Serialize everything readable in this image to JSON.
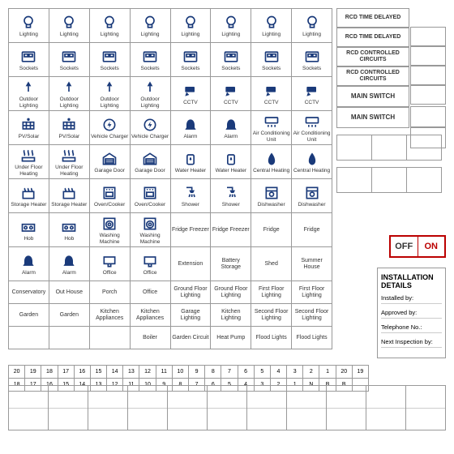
{
  "colors": {
    "icon": "#1a3a7a",
    "border": "#999",
    "text": "#333",
    "accent": "#b00"
  },
  "grid": {
    "cols": 8,
    "rows": [
      [
        {
          "i": "bulb",
          "l": "Lighting"
        },
        {
          "i": "bulb",
          "l": "Lighting"
        },
        {
          "i": "bulb",
          "l": "Lighting"
        },
        {
          "i": "bulb",
          "l": "Lighting"
        },
        {
          "i": "bulb",
          "l": "Lighting"
        },
        {
          "i": "bulb",
          "l": "Lighting"
        },
        {
          "i": "bulb",
          "l": "Lighting"
        },
        {
          "i": "bulb",
          "l": "Lighting"
        }
      ],
      [
        {
          "i": "socket",
          "l": "Sockets"
        },
        {
          "i": "socket",
          "l": "Sockets"
        },
        {
          "i": "socket",
          "l": "Sockets"
        },
        {
          "i": "socket",
          "l": "Sockets"
        },
        {
          "i": "socket",
          "l": "Sockets"
        },
        {
          "i": "socket",
          "l": "Sockets"
        },
        {
          "i": "socket",
          "l": "Sockets"
        },
        {
          "i": "socket",
          "l": "Sockets"
        }
      ],
      [
        {
          "i": "lamp",
          "l": "Outdoor Lighting"
        },
        {
          "i": "lamp",
          "l": "Outdoor Lighting"
        },
        {
          "i": "lamp",
          "l": "Outdoor Lighting"
        },
        {
          "i": "lamp",
          "l": "Outdoor Lighting"
        },
        {
          "i": "cctv",
          "l": "CCTV"
        },
        {
          "i": "cctv",
          "l": "CCTV"
        },
        {
          "i": "cctv",
          "l": "CCTV"
        },
        {
          "i": "cctv",
          "l": "CCTV"
        }
      ],
      [
        {
          "i": "solar",
          "l": "PV/Solar"
        },
        {
          "i": "solar",
          "l": "PV/Solar"
        },
        {
          "i": "ev",
          "l": "Vehicle Charger"
        },
        {
          "i": "ev",
          "l": "Vehicle Charger"
        },
        {
          "i": "alarm",
          "l": "Alarm"
        },
        {
          "i": "alarm",
          "l": "Alarm"
        },
        {
          "i": "ac",
          "l": "Air Conditioning Unit"
        },
        {
          "i": "ac",
          "l": "Air Conditioning Unit"
        }
      ],
      [
        {
          "i": "ufh",
          "l": "Under Floor Heating"
        },
        {
          "i": "ufh",
          "l": "Under Floor Heating"
        },
        {
          "i": "garage",
          "l": "Garage Door"
        },
        {
          "i": "garage",
          "l": "Garage Door"
        },
        {
          "i": "water",
          "l": "Water Heater"
        },
        {
          "i": "water",
          "l": "Water Heater"
        },
        {
          "i": "flame",
          "l": "Central Heating"
        },
        {
          "i": "flame",
          "l": "Central Heating"
        }
      ],
      [
        {
          "i": "storage",
          "l": "Storage Heater"
        },
        {
          "i": "storage",
          "l": "Storage Heater"
        },
        {
          "i": "oven",
          "l": "Oven/Cooker"
        },
        {
          "i": "oven",
          "l": "Oven/Cooker"
        },
        {
          "i": "shower",
          "l": "Shower"
        },
        {
          "i": "shower",
          "l": "Shower"
        },
        {
          "i": "dish",
          "l": "Dishwasher"
        },
        {
          "i": "dish",
          "l": "Dishwasher"
        }
      ],
      [
        {
          "i": "hob",
          "l": "Hob"
        },
        {
          "i": "hob",
          "l": "Hob"
        },
        {
          "i": "wash",
          "l": "Washing Machine"
        },
        {
          "i": "wash",
          "l": "Washing Machine"
        },
        {
          "l": "Fridge Freezer"
        },
        {
          "l": "Fridge Freezer"
        },
        {
          "l": "Fridge"
        },
        {
          "l": "Fridge"
        }
      ],
      [
        {
          "i": "alarm",
          "l": "Alarm"
        },
        {
          "i": "alarm",
          "l": "Alarm"
        },
        {
          "i": "office",
          "l": "Office"
        },
        {
          "i": "office",
          "l": "Office"
        },
        {
          "l": "Extension"
        },
        {
          "l": "Battery Storage"
        },
        {
          "l": "Shed"
        },
        {
          "l": "Summer House"
        }
      ],
      [
        {
          "l": "Conservatory"
        },
        {
          "l": "Out House"
        },
        {
          "l": "Porch"
        },
        {
          "l": "Office"
        },
        {
          "l": "Ground Floor Lighting"
        },
        {
          "l": "Ground Floor Lighting"
        },
        {
          "l": "First Floor Lighting"
        },
        {
          "l": "First Floor Lighting"
        }
      ],
      [
        {
          "l": "Garden"
        },
        {
          "l": "Garden"
        },
        {
          "l": "Kitchen Appliances"
        },
        {
          "l": "Kitchen Appliances"
        },
        {
          "l": "Garage Lighting"
        },
        {
          "l": "Kitchen Lighting"
        },
        {
          "l": "Second Floor Lighting"
        },
        {
          "l": "Second Floor Lighting"
        }
      ],
      [
        {
          "l": ""
        },
        {
          "l": ""
        },
        {
          "l": ""
        },
        {
          "l": "Boiler"
        },
        {
          "l": "Garden Circuit"
        },
        {
          "l": "Heat Pump"
        },
        {
          "l": "Flood Lights"
        },
        {
          "l": "Flood Lights"
        }
      ]
    ]
  },
  "right": [
    "RCD TIME DELAYED",
    "RCD TIME DELAYED",
    "RCD CONTROLLED CIRCUITS",
    "RCD CONTROLLED CIRCUITS",
    "MAIN SWITCH",
    "MAIN SWITCH"
  ],
  "onoff": {
    "off": "OFF",
    "on": "ON"
  },
  "install": {
    "title": "INSTALLATION DETAILS",
    "lines": [
      "Installed by:",
      "Approved by:",
      "Telephone No.:",
      "Next Inspection by:"
    ]
  },
  "numbers": [
    "20",
    "19",
    "18",
    "17",
    "16",
    "15",
    "14",
    "13",
    "12",
    "11",
    "10",
    "9",
    "8",
    "7",
    "6",
    "5",
    "4",
    "3",
    "2",
    "1",
    "20",
    "19",
    "18",
    "17",
    "16",
    "15",
    "14",
    "13",
    "12",
    "11",
    "10",
    "9",
    "8",
    "7",
    "6",
    "5",
    "4",
    "3",
    "2",
    "1",
    "N",
    "B",
    "B",
    ""
  ],
  "bottom_slots": 11
}
